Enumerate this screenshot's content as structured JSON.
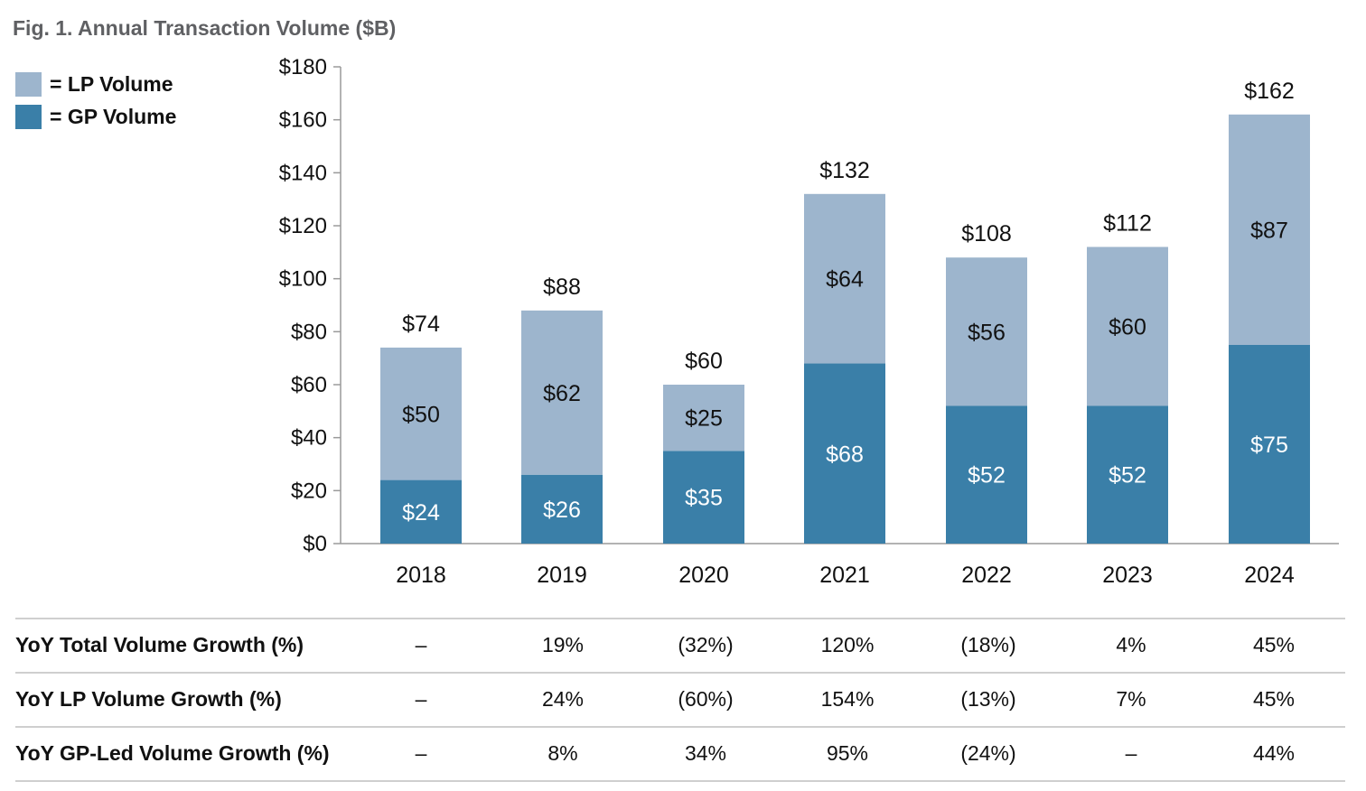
{
  "title": "Fig. 1. Annual Transaction Volume ($B)",
  "legend": [
    {
      "label": "= LP Volume",
      "color": "#9db5cd"
    },
    {
      "label": "= GP Volume",
      "color": "#3a7fa8"
    }
  ],
  "chart_data": {
    "type": "bar",
    "stacked": true,
    "categories": [
      "2018",
      "2019",
      "2020",
      "2021",
      "2022",
      "2023",
      "2024"
    ],
    "series": [
      {
        "name": "GP Volume",
        "color": "#3a7fa8",
        "values": [
          24,
          26,
          35,
          68,
          52,
          52,
          75
        ],
        "labels": [
          "$24",
          "$26",
          "$35",
          "$68",
          "$52",
          "$52",
          "$75"
        ]
      },
      {
        "name": "LP Volume",
        "color": "#9db5cd",
        "values": [
          50,
          62,
          25,
          64,
          56,
          60,
          87
        ],
        "labels": [
          "$50",
          "$62",
          "$25",
          "$64",
          "$56",
          "$60",
          "$87"
        ]
      }
    ],
    "totals": [
      74,
      88,
      60,
      132,
      108,
      112,
      162
    ],
    "total_labels": [
      "$74",
      "$88",
      "$60",
      "$132",
      "$108",
      "$112",
      "$162"
    ],
    "ylim": [
      0,
      180
    ],
    "yticks": [
      0,
      20,
      40,
      60,
      80,
      100,
      120,
      140,
      160,
      180
    ],
    "ytick_labels": [
      "$0",
      "$20",
      "$40",
      "$60",
      "$80",
      "$100",
      "$120",
      "$140",
      "$160",
      "$180"
    ],
    "grid": false
  },
  "table": {
    "rows": [
      {
        "label": "YoY Total Volume Growth (%)",
        "values": [
          "–",
          "19%",
          "(32%)",
          "120%",
          "(18%)",
          "4%",
          "45%"
        ]
      },
      {
        "label": "YoY LP Volume Growth (%)",
        "values": [
          "–",
          "24%",
          "(60%)",
          "154%",
          "(13%)",
          "7%",
          "45%"
        ]
      },
      {
        "label": "YoY GP-Led Volume Growth (%)",
        "values": [
          "–",
          "8%",
          "34%",
          "95%",
          "(24%)",
          "–",
          "44%"
        ]
      }
    ]
  }
}
